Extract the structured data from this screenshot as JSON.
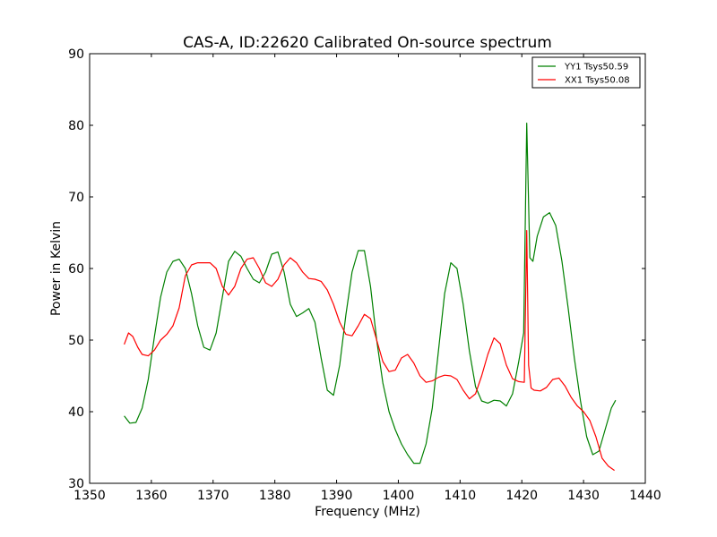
{
  "chart_data": {
    "type": "line",
    "title": "CAS-A, ID:22620 Calibrated On-source spectrum",
    "xlabel": "Frequency (MHz)",
    "ylabel": "Power in Kelvin",
    "xlim": [
      1350,
      1440
    ],
    "ylim": [
      30,
      90
    ],
    "xticks": [
      1350,
      1360,
      1370,
      1380,
      1390,
      1400,
      1410,
      1420,
      1430,
      1440
    ],
    "yticks": [
      30,
      40,
      50,
      60,
      70,
      80,
      90
    ],
    "grid": false,
    "legend_position": "top-right",
    "series": [
      {
        "name": "YY1 Tsys50.59",
        "color": "#008000",
        "x": [
          1355.6,
          1356.5,
          1357.5,
          1358.5,
          1359.5,
          1360.5,
          1361.5,
          1362.5,
          1363.5,
          1364.5,
          1365.5,
          1366.5,
          1367.5,
          1368.5,
          1369.5,
          1370.5,
          1371.5,
          1372.5,
          1373.5,
          1374.5,
          1375.5,
          1376.5,
          1377.5,
          1378.5,
          1379.5,
          1380.5,
          1381.5,
          1382.5,
          1383.5,
          1384.5,
          1385.5,
          1386.5,
          1387.5,
          1388.5,
          1389.5,
          1390.5,
          1391.5,
          1392.5,
          1393.5,
          1394.5,
          1395.5,
          1396.5,
          1397.5,
          1398.5,
          1399.5,
          1400.5,
          1401.5,
          1402.5,
          1403.5,
          1404.5,
          1405.5,
          1406.5,
          1407.5,
          1408.5,
          1409.5,
          1410.5,
          1411.5,
          1412.5,
          1413.5,
          1414.5,
          1415.5,
          1416.5,
          1417.5,
          1418.5,
          1419.5,
          1420.3,
          1420.8,
          1421.3,
          1421.8,
          1422.5,
          1423.5,
          1424.5,
          1425.5,
          1426.5,
          1427.5,
          1428.5,
          1429.5,
          1430.5,
          1431.5,
          1432.5,
          1433.5,
          1434.5,
          1435.2
        ],
        "y": [
          39.4,
          38.4,
          38.5,
          40.5,
          44.5,
          50.5,
          56.0,
          59.5,
          61.0,
          61.3,
          60.0,
          56.5,
          52.0,
          49.0,
          48.6,
          51.0,
          56.0,
          61.0,
          62.4,
          61.7,
          60.0,
          58.5,
          58.0,
          59.5,
          62.0,
          62.3,
          59.5,
          55.0,
          53.3,
          53.8,
          54.4,
          52.5,
          47.5,
          43.0,
          42.3,
          46.5,
          53.5,
          59.5,
          62.5,
          62.5,
          57.5,
          50.0,
          44.0,
          40.0,
          37.5,
          35.5,
          34.0,
          32.8,
          32.8,
          35.5,
          40.5,
          48.5,
          56.5,
          60.8,
          60.0,
          55.0,
          48.5,
          43.5,
          41.5,
          41.2,
          41.6,
          41.5,
          40.8,
          42.5,
          47.0,
          51.0,
          80.3,
          61.5,
          61.0,
          64.5,
          67.2,
          67.8,
          66.0,
          61.0,
          54.5,
          47.5,
          41.5,
          36.5,
          34.0,
          34.5,
          37.5,
          40.5,
          41.6
        ]
      },
      {
        "name": "XX1 Tsys50.08",
        "color": "#ff0000",
        "x": [
          1355.6,
          1356.3,
          1357.0,
          1357.8,
          1358.5,
          1359.5,
          1360.5,
          1361.5,
          1362.5,
          1363.5,
          1364.5,
          1365.5,
          1366.5,
          1367.5,
          1368.5,
          1369.5,
          1370.5,
          1371.5,
          1372.5,
          1373.5,
          1374.5,
          1375.5,
          1376.5,
          1377.5,
          1378.5,
          1379.5,
          1380.5,
          1381.5,
          1382.5,
          1383.5,
          1384.5,
          1385.5,
          1386.5,
          1387.5,
          1388.5,
          1389.5,
          1390.5,
          1391.5,
          1392.5,
          1393.5,
          1394.5,
          1395.5,
          1396.5,
          1397.5,
          1398.5,
          1399.5,
          1400.5,
          1401.5,
          1402.5,
          1403.5,
          1404.5,
          1405.5,
          1406.5,
          1407.5,
          1408.5,
          1409.5,
          1410.5,
          1411.5,
          1412.5,
          1413.5,
          1414.5,
          1415.5,
          1416.5,
          1417.5,
          1418.5,
          1419.5,
          1420.4,
          1420.8,
          1421.1,
          1421.5,
          1422.0,
          1423.0,
          1424.0,
          1425.0,
          1426.0,
          1427.0,
          1428.0,
          1429.0,
          1430.0,
          1431.0,
          1432.0,
          1433.0,
          1434.0,
          1435.0
        ],
        "y": [
          49.4,
          51.0,
          50.5,
          49.0,
          48.0,
          47.8,
          48.6,
          50.0,
          50.8,
          52.0,
          54.5,
          59.0,
          60.5,
          60.8,
          60.8,
          60.8,
          60.0,
          57.5,
          56.3,
          57.5,
          60.0,
          61.3,
          61.5,
          60.0,
          58.0,
          57.5,
          58.5,
          60.5,
          61.5,
          60.8,
          59.5,
          58.6,
          58.5,
          58.2,
          57.0,
          55.0,
          52.5,
          50.8,
          50.6,
          52.0,
          53.6,
          53.0,
          50.0,
          47.0,
          45.6,
          45.8,
          47.5,
          48.0,
          46.8,
          45.0,
          44.1,
          44.3,
          44.8,
          45.1,
          45.0,
          44.5,
          43.0,
          41.8,
          42.5,
          45.0,
          48.0,
          50.3,
          49.5,
          46.5,
          44.6,
          44.2,
          44.1,
          65.3,
          46.5,
          43.3,
          43.0,
          42.9,
          43.4,
          44.5,
          44.7,
          43.6,
          42.0,
          40.8,
          40.0,
          38.8,
          36.5,
          33.5,
          32.4,
          31.8
        ]
      }
    ]
  }
}
